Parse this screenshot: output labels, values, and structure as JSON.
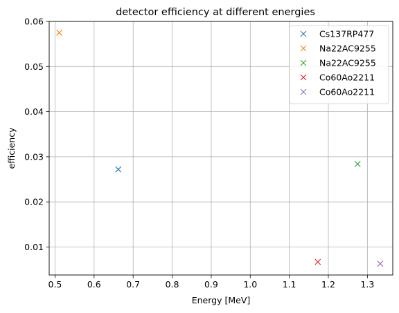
{
  "chart_data": {
    "type": "scatter",
    "title": "detector efficiency at different energies",
    "xlabel": "Energy [MeV]",
    "ylabel": "efficiency",
    "xlim": [
      0.485,
      1.365
    ],
    "ylim": [
      0.0038,
      0.06
    ],
    "xticks": [
      0.5,
      0.6,
      0.7,
      0.8,
      0.9,
      1.0,
      1.1,
      1.2,
      1.3
    ],
    "xtick_labels": [
      "0.5",
      "0.6",
      "0.7",
      "0.8",
      "0.9",
      "1.0",
      "1.1",
      "1.2",
      "1.3"
    ],
    "yticks": [
      0.01,
      0.02,
      0.03,
      0.04,
      0.05,
      0.06
    ],
    "ytick_labels": [
      "0.01",
      "0.02",
      "0.03",
      "0.04",
      "0.05",
      "0.06"
    ],
    "grid": true,
    "legend_position": "top-right",
    "marker": "x",
    "series": [
      {
        "name": "Cs137RP477",
        "color": "#1f77b4",
        "points": [
          {
            "x": 0.662,
            "y": 0.0272
          }
        ]
      },
      {
        "name": "Na22AC9255",
        "color": "#ff7f0e",
        "points": [
          {
            "x": 0.511,
            "y": 0.0575
          }
        ]
      },
      {
        "name": "Na22AC9255",
        "color": "#2ca02c",
        "points": [
          {
            "x": 1.275,
            "y": 0.0284
          }
        ]
      },
      {
        "name": "Co60Ao2211",
        "color": "#d62728",
        "points": [
          {
            "x": 1.173,
            "y": 0.0067
          }
        ]
      },
      {
        "name": "Co60Ao2211",
        "color": "#9467bd",
        "points": [
          {
            "x": 1.333,
            "y": 0.0063
          }
        ]
      }
    ]
  }
}
